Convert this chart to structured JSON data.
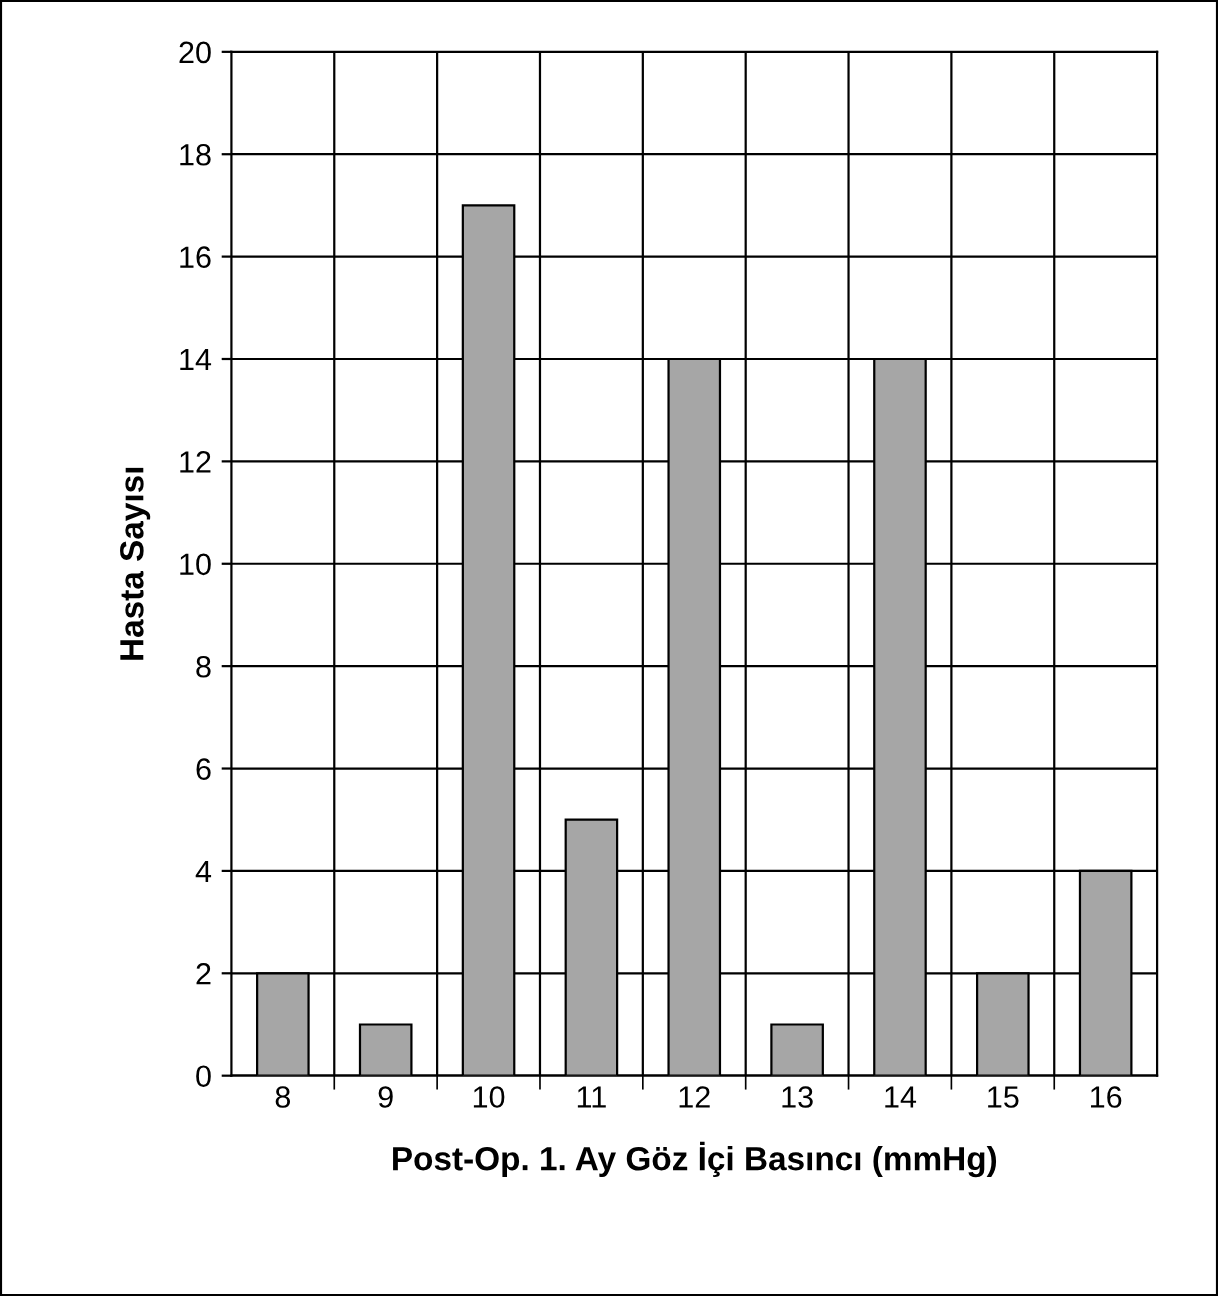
{
  "chart_data": {
    "type": "bar",
    "xlabel": "Post-Op. 1. Ay Göz İçi Basıncı (mmHg)",
    "ylabel": "Hasta Sayısı",
    "categories": [
      "8",
      "9",
      "10",
      "11",
      "12",
      "13",
      "14",
      "15",
      "16"
    ],
    "values": [
      2,
      1,
      17,
      5,
      14,
      1,
      14,
      2,
      4
    ],
    "color": "#a6a6a6",
    "ylim": [
      0,
      20
    ],
    "yticks": [
      0,
      2,
      4,
      6,
      8,
      10,
      12,
      14,
      16,
      18,
      20
    ],
    "grid": true
  }
}
